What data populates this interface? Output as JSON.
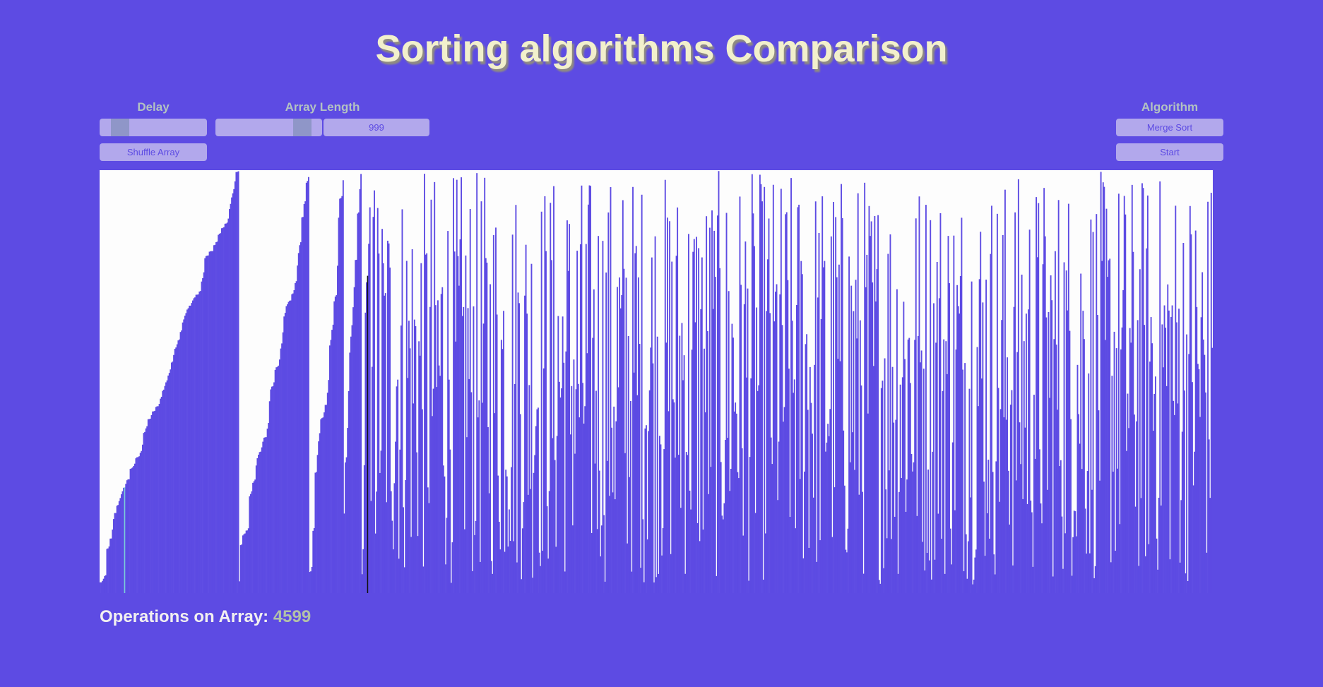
{
  "title": "Sorting algorithms Comparison",
  "controls": {
    "delay": {
      "label": "Delay",
      "value_fraction": 0.07
    },
    "array_length": {
      "label": "Array Length",
      "value_fraction": 0.88,
      "value": "999"
    },
    "shuffle_label": "Shuffle Array",
    "algorithm": {
      "label": "Algorithm",
      "selected": "Merge Sort",
      "start_label": "Start"
    }
  },
  "status": {
    "operations_label": "Operations on Array:",
    "operations_count": "4599"
  },
  "colors": {
    "background": "#5d4be3",
    "bar": "#5d4be3",
    "canvas": "#fdfdfd",
    "highlight_bar": "#111111",
    "compare_bar": "#7ad0d8"
  },
  "visualization": {
    "array_length": 999,
    "sorted_run_lengths": [
      125,
      63,
      31,
      16,
      8,
      4
    ],
    "current_index": 240,
    "compare_index": 22
  }
}
